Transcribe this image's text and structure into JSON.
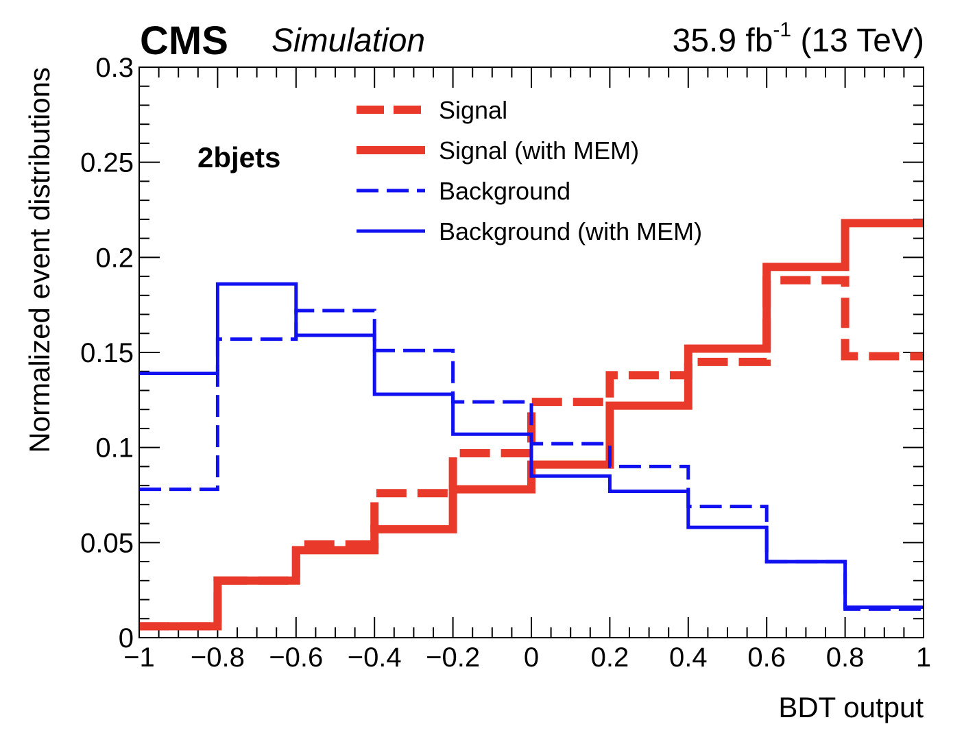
{
  "header": {
    "experiment": "CMS",
    "status": "Simulation",
    "lumi_value": "35.9 fb",
    "lumi_exponent": "-1",
    "energy": "(13 TeV)"
  },
  "chart_data": {
    "type": "line",
    "step": true,
    "annotation": "2bjets",
    "xlabel": "BDT output",
    "ylabel": "Normalized event distributions",
    "xlim": [
      -1,
      1
    ],
    "ylim": [
      0,
      0.3
    ],
    "x_ticks": [
      "−1",
      "−0.8",
      "−0.6",
      "−0.4",
      "−0.2",
      "0",
      "0.2",
      "0.4",
      "0.6",
      "0.8",
      "1"
    ],
    "y_ticks": [
      "0",
      "0.05",
      "0.1",
      "0.15",
      "0.2",
      "0.25",
      "0.3"
    ],
    "bin_edges": [
      -1,
      -0.8,
      -0.6,
      -0.4,
      -0.2,
      0,
      0.2,
      0.4,
      0.6,
      0.8,
      1
    ],
    "legend_position": "top-center",
    "series": [
      {
        "name": "Signal",
        "color": "#e8392b",
        "style": "thick-dashed",
        "values": [
          0.006,
          0.03,
          0.049,
          0.076,
          0.097,
          0.124,
          0.138,
          0.145,
          0.188,
          0.148
        ]
      },
      {
        "name": "Signal (with MEM)",
        "color": "#e8392b",
        "style": "thick-solid",
        "values": [
          0.006,
          0.03,
          0.046,
          0.057,
          0.078,
          0.091,
          0.122,
          0.152,
          0.195,
          0.218
        ]
      },
      {
        "name": "Background",
        "color": "#1010f0",
        "style": "dashed",
        "values": [
          0.078,
          0.157,
          0.172,
          0.151,
          0.124,
          0.102,
          0.09,
          0.069,
          0.04,
          0.015
        ]
      },
      {
        "name": "Background (with MEM)",
        "color": "#1010f0",
        "style": "solid",
        "values": [
          0.139,
          0.186,
          0.159,
          0.128,
          0.107,
          0.085,
          0.077,
          0.058,
          0.04,
          0.016
        ]
      }
    ]
  }
}
